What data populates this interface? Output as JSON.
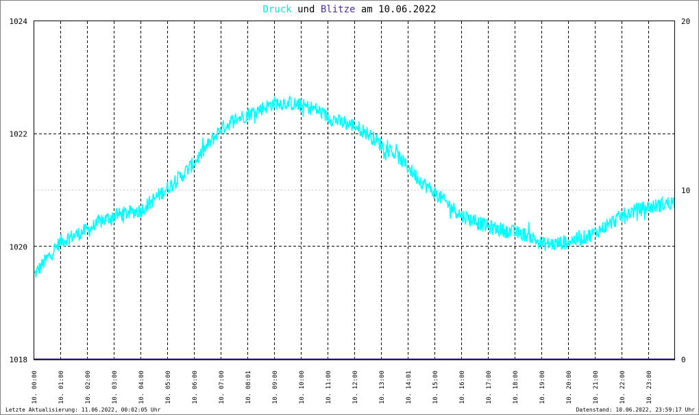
{
  "colors": {
    "pressure": "#00ffff",
    "lightning": "#4b2e9a",
    "text": "#000000",
    "grid": "#000000",
    "grid_minor": "#c8c8c8",
    "frame": "#808080"
  },
  "title": {
    "part1": "Druck",
    "part2": " und ",
    "part3": "Blitze",
    "part4": " am 10.06.2022"
  },
  "footer": {
    "left": "Letzte Aktualisierung: 11.06.2022, 00:02:05 Uhr",
    "right": "Datenstand: 10.06.2022, 23:59:17 Uhr"
  },
  "chart_data": {
    "type": "line",
    "title": "Druck und Blitze am 10.06.2022",
    "y_left": {
      "ylim": [
        1018,
        1024
      ],
      "ticks": [
        "1018",
        "1020",
        "1022",
        "1024"
      ]
    },
    "y_right": {
      "ylim": [
        0,
        20
      ],
      "ticks": [
        "0",
        "10",
        "20"
      ]
    },
    "x_tick_labels": [
      "10. 00:00",
      "10. 01:00",
      "10. 02:00",
      "10. 03:00",
      "10. 04:00",
      "10. 05:00",
      "10. 06:00",
      "10. 07:00",
      "10. 08:01",
      "10. 09:00",
      "10. 10:00",
      "10. 11:00",
      "10. 12:00",
      "10. 13:00",
      "10. 14:01",
      "10. 15:00",
      "10. 16:00",
      "10. 17:00",
      "10. 18:00",
      "10. 19:00",
      "10. 20:00",
      "10. 21:00",
      "10. 22:00",
      "10. 23:00"
    ],
    "grid": true,
    "series": [
      {
        "name": "Druck",
        "axis": "left",
        "x_hours": [
          0,
          0.5,
          1,
          1.5,
          2,
          2.5,
          3,
          3.5,
          4,
          4.5,
          5,
          5.5,
          6,
          6.5,
          7,
          7.5,
          8,
          8.5,
          9,
          9.5,
          10,
          10.5,
          11,
          11.5,
          12,
          12.5,
          13,
          13.5,
          14,
          14.5,
          15,
          15.5,
          16,
          16.5,
          17,
          17.5,
          18,
          18.5,
          19,
          19.5,
          20,
          20.5,
          21,
          21.5,
          22,
          22.5,
          23,
          23.5,
          23.95
        ],
        "values": [
          1019.5,
          1019.8,
          1020.1,
          1020.2,
          1020.3,
          1020.45,
          1020.55,
          1020.6,
          1020.65,
          1020.85,
          1021.05,
          1021.25,
          1021.5,
          1021.8,
          1022.1,
          1022.25,
          1022.35,
          1022.45,
          1022.55,
          1022.55,
          1022.5,
          1022.45,
          1022.3,
          1022.2,
          1022.15,
          1022.0,
          1021.8,
          1021.65,
          1021.4,
          1021.15,
          1020.95,
          1020.75,
          1020.55,
          1020.45,
          1020.35,
          1020.3,
          1020.25,
          1020.2,
          1020.05,
          1020.05,
          1020.1,
          1020.15,
          1020.25,
          1020.4,
          1020.55,
          1020.65,
          1020.7,
          1020.75,
          1020.8
        ]
      },
      {
        "name": "Blitze",
        "axis": "right",
        "x_hours": [
          0,
          23.95
        ],
        "values": [
          0,
          0
        ]
      }
    ]
  }
}
